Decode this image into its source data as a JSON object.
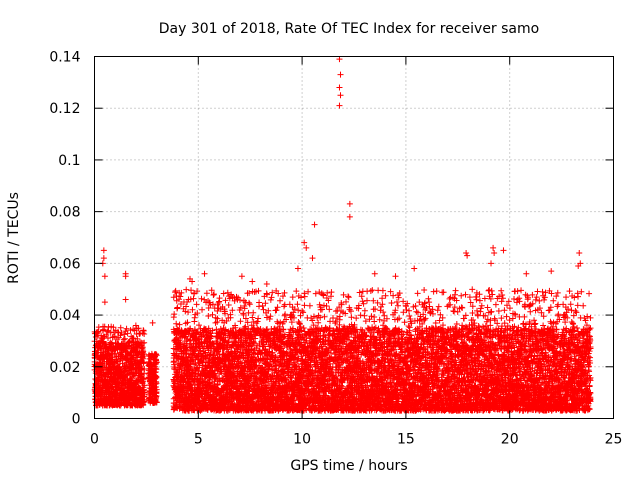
{
  "chart_data": {
    "type": "scatter",
    "title": "Day 301 of 2018, Rate Of TEC Index for receiver samo",
    "xlabel": "GPS time / hours",
    "ylabel": "ROTI / TECUs",
    "xlim": [
      0,
      25
    ],
    "ylim": [
      0,
      0.14
    ],
    "x_ticks": [
      0,
      5,
      10,
      15,
      20,
      25
    ],
    "x_tick_labels": [
      "0",
      "5",
      "10",
      "15",
      "20",
      "25"
    ],
    "y_ticks": [
      0,
      0.02,
      0.04,
      0.06,
      0.08,
      0.1,
      0.12,
      0.14
    ],
    "y_tick_labels": [
      "0",
      "0.02",
      "0.04",
      "0.06",
      "0.08",
      "0.1",
      "0.12",
      "0.14"
    ],
    "grid": true,
    "marker": "+",
    "color": "#ff0000",
    "series": [
      {
        "name": "ROTI",
        "segments": [
          {
            "x_start": 0.0,
            "x_end": 2.4,
            "dense_ymin": 0.005,
            "dense_ymax": 0.03,
            "peak": 0.036
          },
          {
            "x_start": 2.6,
            "x_end": 3.0,
            "dense_ymin": 0.006,
            "dense_ymax": 0.024,
            "peak": 0.025
          },
          {
            "x_start": 3.8,
            "x_end": 23.9,
            "dense_ymin": 0.003,
            "dense_ymax": 0.035,
            "peak": 0.05
          }
        ],
        "outliers": [
          {
            "x": 0.45,
            "y": 0.065
          },
          {
            "x": 0.45,
            "y": 0.062
          },
          {
            "x": 0.4,
            "y": 0.06
          },
          {
            "x": 0.5,
            "y": 0.055
          },
          {
            "x": 0.5,
            "y": 0.045
          },
          {
            "x": 1.5,
            "y": 0.056
          },
          {
            "x": 1.5,
            "y": 0.055
          },
          {
            "x": 1.5,
            "y": 0.046
          },
          {
            "x": 2.8,
            "y": 0.037
          },
          {
            "x": 4.6,
            "y": 0.054
          },
          {
            "x": 4.7,
            "y": 0.053
          },
          {
            "x": 5.3,
            "y": 0.056
          },
          {
            "x": 7.1,
            "y": 0.055
          },
          {
            "x": 7.6,
            "y": 0.053
          },
          {
            "x": 8.3,
            "y": 0.052
          },
          {
            "x": 9.8,
            "y": 0.058
          },
          {
            "x": 10.1,
            "y": 0.068
          },
          {
            "x": 10.2,
            "y": 0.066
          },
          {
            "x": 10.6,
            "y": 0.075
          },
          {
            "x": 10.5,
            "y": 0.062
          },
          {
            "x": 11.8,
            "y": 0.139
          },
          {
            "x": 11.85,
            "y": 0.133
          },
          {
            "x": 11.8,
            "y": 0.128
          },
          {
            "x": 11.85,
            "y": 0.125
          },
          {
            "x": 11.8,
            "y": 0.121
          },
          {
            "x": 12.3,
            "y": 0.083
          },
          {
            "x": 12.3,
            "y": 0.078
          },
          {
            "x": 13.5,
            "y": 0.056
          },
          {
            "x": 14.5,
            "y": 0.055
          },
          {
            "x": 15.4,
            "y": 0.058
          },
          {
            "x": 17.9,
            "y": 0.064
          },
          {
            "x": 17.95,
            "y": 0.063
          },
          {
            "x": 19.2,
            "y": 0.066
          },
          {
            "x": 19.25,
            "y": 0.064
          },
          {
            "x": 19.7,
            "y": 0.065
          },
          {
            "x": 19.1,
            "y": 0.06
          },
          {
            "x": 20.8,
            "y": 0.056
          },
          {
            "x": 22.0,
            "y": 0.057
          },
          {
            "x": 23.35,
            "y": 0.064
          },
          {
            "x": 23.4,
            "y": 0.06
          },
          {
            "x": 23.3,
            "y": 0.059
          }
        ]
      }
    ]
  }
}
